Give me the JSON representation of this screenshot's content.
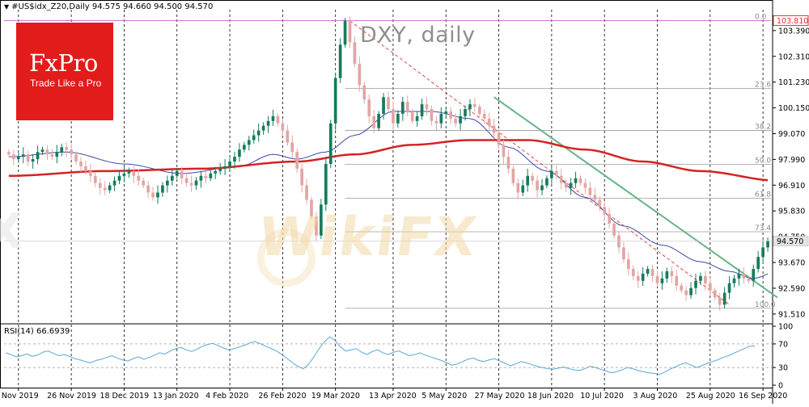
{
  "chart_data": {
    "type": "candlestick",
    "title": "DXY, daily",
    "symbol_header": "#US$idx_Z20,Daily  94.575 94.660 94.500 94.570",
    "timeframe": "Daily",
    "ohlc_last": {
      "open": 94.575,
      "high": 94.66,
      "low": 94.5,
      "close": 94.57
    },
    "price_axis": {
      "ticks": [
        "103.390",
        "102.310",
        "101.230",
        "100.150",
        "99.070",
        "97.990",
        "96.910",
        "95.830",
        "94.750",
        "93.670",
        "92.590",
        "91.510"
      ],
      "ylim": [
        91.2,
        104.4
      ],
      "scale_top": "103.810",
      "current_price": "94.570"
    },
    "time_axis": {
      "ticks": [
        "4 Nov 2019",
        "26 Nov 2019",
        "18 Dec 2019",
        "13 Jan 2020",
        "4 Feb 2020",
        "26 Feb 2020",
        "19 Mar 2020",
        "13 Apr 2020",
        "5 May 2020",
        "27 May 2020",
        "18 Jun 2020",
        "10 Jul 2020",
        "3 Aug 2020",
        "25 Aug 2020",
        "16 Sep 2020"
      ]
    },
    "fibonacci": {
      "high": 103.81,
      "low": 91.75,
      "levels": [
        {
          "label": "0.0",
          "ratio": 0
        },
        {
          "label": "23.6",
          "ratio": 0.236
        },
        {
          "label": "38.2",
          "ratio": 0.382
        },
        {
          "label": "50.0",
          "ratio": 0.5
        },
        {
          "label": "61.8",
          "ratio": 0.618
        },
        {
          "label": "73.4",
          "ratio": 0.734
        },
        {
          "label": "100.0",
          "ratio": 1.0
        }
      ]
    },
    "series_close": [
      98.2,
      98.0,
      98.1,
      98.2,
      97.9,
      98.0,
      98.3,
      98.4,
      98.2,
      98.1,
      98.3,
      98.5,
      98.4,
      98.2,
      97.9,
      97.7,
      97.5,
      97.3,
      97.0,
      96.8,
      96.7,
      96.9,
      97.1,
      97.3,
      97.4,
      97.5,
      97.3,
      97.1,
      96.9,
      96.6,
      96.4,
      96.6,
      96.9,
      97.1,
      97.3,
      97.5,
      97.2,
      97.0,
      96.9,
      97.1,
      97.3,
      97.2,
      97.4,
      97.5,
      97.6,
      97.7,
      97.9,
      98.1,
      98.4,
      98.6,
      98.8,
      99.0,
      99.2,
      99.4,
      99.6,
      99.8,
      99.5,
      99.2,
      98.7,
      98.3,
      97.6,
      96.9,
      96.3,
      95.6,
      94.8,
      96.1,
      97.8,
      99.5,
      101.4,
      102.8,
      103.8,
      102.9,
      102.0,
      101.1,
      100.5,
      99.8,
      99.3,
      99.9,
      100.6,
      100.1,
      99.5,
      99.9,
      100.4,
      100.0,
      99.6,
      99.8,
      100.3,
      100.1,
      99.6,
      99.5,
      99.9,
      100.0,
      99.7,
      99.5,
      99.8,
      100.1,
      100.3,
      100.2,
      99.9,
      99.7,
      99.4,
      99.1,
      98.6,
      98.1,
      97.6,
      97.0,
      96.6,
      96.9,
      97.3,
      97.1,
      96.7,
      96.9,
      97.2,
      97.5,
      97.3,
      97.0,
      96.8,
      97.0,
      97.2,
      97.0,
      96.8,
      96.5,
      96.3,
      96.0,
      95.7,
      95.3,
      94.8,
      94.3,
      93.8,
      93.4,
      93.1,
      92.9,
      93.2,
      93.4,
      93.1,
      92.8,
      93.0,
      93.3,
      93.1,
      92.7,
      92.5,
      92.3,
      92.6,
      92.9,
      93.1,
      92.8,
      92.5,
      92.2,
      91.9,
      92.4,
      92.8,
      93.0,
      93.2,
      93.0,
      92.9,
      93.4,
      93.9,
      94.3,
      94.57
    ],
    "ma_thin_knots": [
      [
        0,
        98.1
      ],
      [
        12,
        98.3
      ],
      [
        24,
        97.8
      ],
      [
        36,
        97.4
      ],
      [
        48,
        97.7
      ],
      [
        55,
        98.2
      ],
      [
        60,
        98.0
      ],
      [
        66,
        98.3
      ],
      [
        72,
        99.0
      ],
      [
        80,
        100.0
      ],
      [
        88,
        100.0
      ],
      [
        96,
        99.7
      ],
      [
        104,
        98.5
      ],
      [
        112,
        97.5
      ],
      [
        120,
        96.4
      ],
      [
        128,
        95.2
      ],
      [
        136,
        94.4
      ],
      [
        144,
        93.7
      ],
      [
        150,
        93.3
      ],
      [
        155,
        93.0
      ],
      [
        160,
        93.3
      ]
    ],
    "ma_thick_knots": [
      [
        0,
        97.3
      ],
      [
        20,
        97.5
      ],
      [
        40,
        97.6
      ],
      [
        60,
        97.9
      ],
      [
        72,
        98.2
      ],
      [
        84,
        98.6
      ],
      [
        96,
        98.8
      ],
      [
        108,
        98.8
      ],
      [
        120,
        98.4
      ],
      [
        132,
        97.9
      ],
      [
        144,
        97.5
      ],
      [
        160,
        97.1
      ]
    ],
    "trendline_green": {
      "from": [
        101,
        100.6
      ],
      "to": [
        160,
        92.2
      ]
    },
    "trendline_dashed_red": {
      "from": [
        71,
        103.8
      ],
      "to": [
        150,
        91.9
      ]
    },
    "rsi": {
      "label": "RSI(14) 66.6939",
      "period": 14,
      "current": 66.6939,
      "scale_ticks": [
        "100",
        "70",
        "30",
        "0"
      ],
      "levels": [
        70,
        30
      ],
      "values": [
        55,
        52,
        48,
        50,
        53,
        49,
        51,
        56,
        58,
        54,
        50,
        52,
        49,
        45,
        43,
        40,
        38,
        42,
        44,
        47,
        50,
        46,
        43,
        41,
        45,
        48,
        44,
        47,
        51,
        55,
        53,
        58,
        62,
        64,
        60,
        57,
        61,
        66,
        69,
        71,
        67,
        63,
        60,
        62,
        65,
        68,
        72,
        74,
        70,
        66,
        62,
        58,
        52,
        45,
        38,
        32,
        28,
        35,
        48,
        62,
        74,
        82,
        76,
        65,
        58,
        60,
        62,
        56,
        52,
        57,
        60,
        55,
        52,
        56,
        58,
        54,
        50,
        52,
        55,
        51,
        48,
        45,
        42,
        38,
        34,
        36,
        40,
        44,
        46,
        42,
        40,
        43,
        45,
        41,
        37,
        33,
        36,
        40,
        38,
        35,
        32,
        30,
        28,
        27,
        29,
        31,
        28,
        26,
        25,
        28,
        32,
        30,
        27,
        24,
        21,
        23,
        26,
        30,
        28,
        25,
        23,
        21,
        20,
        18,
        22,
        27,
        31,
        35,
        38,
        34,
        30,
        33,
        37,
        40,
        43,
        47,
        50,
        54,
        58,
        62,
        66,
        66.69
      ]
    },
    "colors": {
      "bull": "#157c5d",
      "bear": "#e3a5a5",
      "ma_thick": "#d42222",
      "ma_thin": "#3a48a6",
      "trendline": "#67b487",
      "fib_line": "#9b9b9b",
      "fib_label": "#8a8a8a",
      "grid_vertical": "#000000",
      "price_tag": "#e23030",
      "current_tag": "#e4e4e4",
      "rsi_line": "#5aa6d8"
    },
    "grid": true
  },
  "branding": {
    "logo_name": "FxPro",
    "logo_tagline": "Trade Like a Pro",
    "watermark": "WikiFX"
  }
}
